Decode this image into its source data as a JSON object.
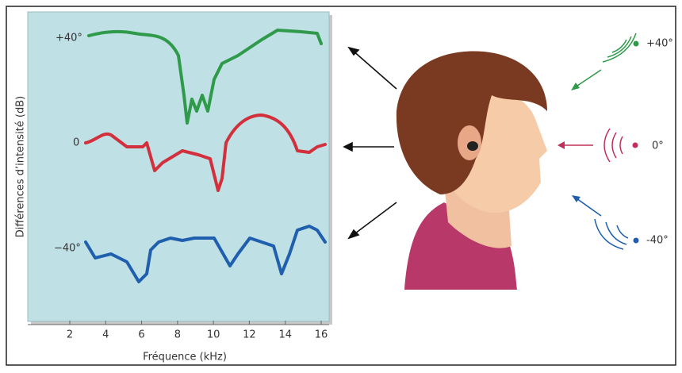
{
  "figure": {
    "y_axis_label": "Différences d’intensité (dB)",
    "x_axis_label": "Fréquence (kHz)",
    "x_ticks": [
      "2",
      "4",
      "6",
      "8",
      "10",
      "12",
      "14",
      "16"
    ],
    "curve_labels": [
      "+40°",
      "0",
      "−40°"
    ],
    "source_labels": [
      "+40°",
      "0°",
      "-40°"
    ]
  }
}
